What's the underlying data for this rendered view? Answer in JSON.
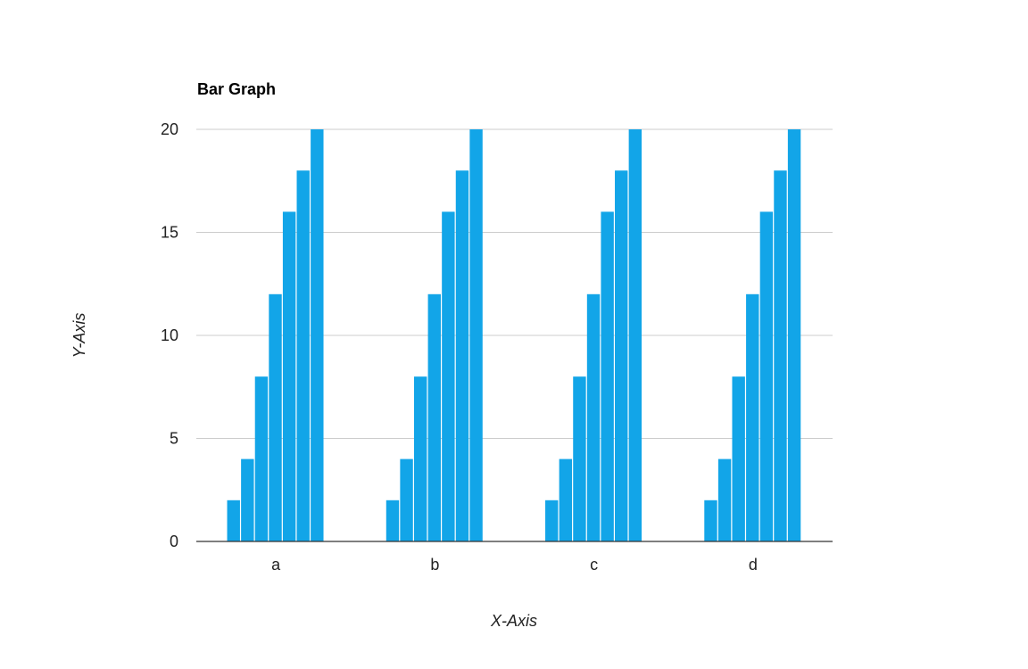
{
  "chart_data": {
    "type": "bar",
    "title": "Bar Graph",
    "xlabel": "X-Axis",
    "ylabel": "Y-Axis",
    "categories": [
      "a",
      "b",
      "c",
      "d"
    ],
    "series": [
      {
        "values": [
          2,
          2,
          2,
          2
        ]
      },
      {
        "values": [
          4,
          4,
          4,
          4
        ]
      },
      {
        "values": [
          8,
          8,
          8,
          8
        ]
      },
      {
        "values": [
          12,
          12,
          12,
          12
        ]
      },
      {
        "values": [
          16,
          16,
          16,
          16
        ]
      },
      {
        "values": [
          18,
          18,
          18,
          18
        ]
      },
      {
        "values": [
          20,
          20,
          20,
          20
        ]
      }
    ],
    "ylim": [
      0,
      20
    ],
    "yticks": [
      "0",
      "5",
      "10",
      "15",
      "20"
    ],
    "grid": true,
    "legend": "none",
    "bar_color": "#12a5e8"
  }
}
